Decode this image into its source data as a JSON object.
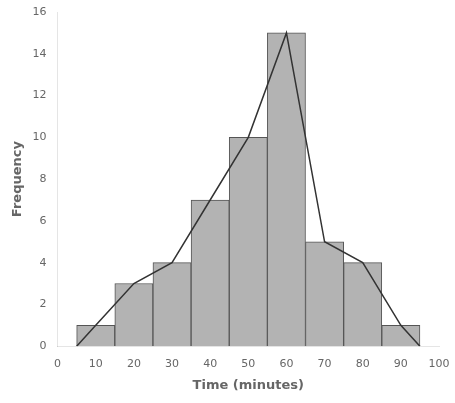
{
  "chart_data": {
    "type": "bar",
    "xlabel": "Time (minutes)",
    "ylabel": "Frequency",
    "series": [
      {
        "type": "bar",
        "color": "#b3b3b3",
        "x": [
          10,
          20,
          30,
          40,
          50,
          60,
          70,
          80,
          90
        ],
        "values": [
          1,
          3,
          4,
          7,
          10,
          15,
          5,
          4,
          1
        ]
      },
      {
        "type": "line",
        "color": "#333333",
        "x": [
          5,
          10,
          20,
          30,
          40,
          50,
          60,
          70,
          80,
          90,
          95
        ],
        "values": [
          0,
          1,
          3,
          4,
          7,
          10,
          15,
          5,
          4,
          1,
          0
        ]
      }
    ],
    "xlim": [
      0,
      100
    ],
    "xticks": [
      0,
      10,
      20,
      30,
      40,
      50,
      60,
      70,
      80,
      90,
      100
    ],
    "ylim": [
      0,
      16
    ],
    "yticks": [
      0,
      2,
      4,
      6,
      8,
      10,
      12,
      14,
      16
    ],
    "grid": false
  }
}
